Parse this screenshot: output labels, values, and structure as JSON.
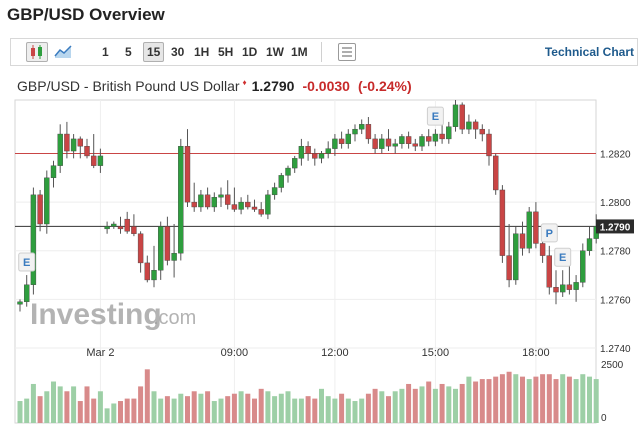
{
  "page": {
    "title": "GBP/USD Overview"
  },
  "toolbar": {
    "chart_icons": [
      "candlestick-icon",
      "area-chart-icon",
      "table-icon"
    ],
    "timeframes": [
      "1",
      "5",
      "15",
      "30",
      "1H",
      "5H",
      "1D",
      "1W",
      "1M"
    ],
    "active_timeframe": "15",
    "technical_chart_label": "Technical Chart"
  },
  "quote": {
    "name": "GBP/USD - British Pound US Dollar",
    "price": "1.2790",
    "change": "-0.0030",
    "change_pct": "(-0.24%)",
    "arrow": "♦"
  },
  "watermark": {
    "brand": "Investing",
    "suffix": ".com"
  },
  "colors": {
    "up": "#2e9e3e",
    "down": "#c94545",
    "vol_up": "#9dcfa6",
    "vol_down": "#d88a8a",
    "ref_line": "#c94545",
    "price_line": "#333333",
    "toolbar_link": "#1e5a8c"
  },
  "chart_data": {
    "type": "candlestick",
    "x_tick_labels": [
      "Mar 2",
      "09:00",
      "12:00",
      "15:00",
      "18:00"
    ],
    "y_tick_labels": [
      "1.2820",
      "1.2800",
      "1.2780",
      "1.2760",
      "1.2740"
    ],
    "ylim": [
      1.274,
      1.2842
    ],
    "current_price_label": "1.2790",
    "reference_line_value": 1.282,
    "event_markers": [
      {
        "label": "E",
        "candle_index": 1
      },
      {
        "label": "E",
        "candle_index": 62
      },
      {
        "label": "P",
        "candle_index": 79
      },
      {
        "label": "E",
        "candle_index": 81
      }
    ],
    "volume_axis_labels": [
      "2500",
      "0"
    ],
    "volume_max": 2500,
    "candles": [
      [
        1.2758,
        1.276,
        1.2755,
        1.2759
      ],
      [
        1.2759,
        1.277,
        1.2757,
        1.2766
      ],
      [
        1.2766,
        1.2806,
        1.2762,
        1.2803
      ],
      [
        1.2803,
        1.2805,
        1.2788,
        1.2791
      ],
      [
        1.2791,
        1.2813,
        1.2787,
        1.281
      ],
      [
        1.281,
        1.2817,
        1.2806,
        1.2815
      ],
      [
        1.2815,
        1.2832,
        1.2812,
        1.2828
      ],
      [
        1.2828,
        1.2833,
        1.2818,
        1.2821
      ],
      [
        1.2821,
        1.2828,
        1.2818,
        1.2826
      ],
      [
        1.2826,
        1.2827,
        1.2818,
        1.2823
      ],
      [
        1.2823,
        1.2826,
        1.2818,
        1.2819
      ],
      [
        1.2819,
        1.2828,
        1.2814,
        1.2815
      ],
      [
        1.2815,
        1.2822,
        1.2812,
        1.2819
      ],
      [
        1.2789,
        1.2792,
        1.2787,
        1.279
      ],
      [
        1.279,
        1.2792,
        1.2789,
        1.2791
      ],
      [
        1.279,
        1.2794,
        1.2787,
        1.2789
      ],
      [
        1.2793,
        1.2796,
        1.2787,
        1.2788
      ],
      [
        1.279,
        1.2795,
        1.2786,
        1.2787
      ],
      [
        1.2787,
        1.2788,
        1.2771,
        1.2775
      ],
      [
        1.2775,
        1.2778,
        1.2767,
        1.2768
      ],
      [
        1.2768,
        1.2782,
        1.2765,
        1.2772
      ],
      [
        1.2772,
        1.2792,
        1.2768,
        1.279
      ],
      [
        1.279,
        1.2794,
        1.2774,
        1.2776
      ],
      [
        1.2776,
        1.2791,
        1.2769,
        1.2779
      ],
      [
        1.2779,
        1.2826,
        1.2776,
        1.2823
      ],
      [
        1.2823,
        1.283,
        1.2798,
        1.28
      ],
      [
        1.28,
        1.2808,
        1.2796,
        1.2798
      ],
      [
        1.2798,
        1.2805,
        1.2796,
        1.2803
      ],
      [
        1.2803,
        1.2806,
        1.2797,
        1.2798
      ],
      [
        1.2798,
        1.2804,
        1.2796,
        1.2802
      ],
      [
        1.2802,
        1.2806,
        1.2798,
        1.2803
      ],
      [
        1.2803,
        1.2809,
        1.2797,
        1.2799
      ],
      [
        1.2799,
        1.2806,
        1.2796,
        1.2797
      ],
      [
        1.2797,
        1.2802,
        1.2795,
        1.28
      ],
      [
        1.28,
        1.2803,
        1.2797,
        1.2798
      ],
      [
        1.2798,
        1.2801,
        1.2796,
        1.2797
      ],
      [
        1.2797,
        1.28,
        1.2794,
        1.2795
      ],
      [
        1.2795,
        1.2805,
        1.2793,
        1.2803
      ],
      [
        1.2803,
        1.2808,
        1.2801,
        1.2806
      ],
      [
        1.2806,
        1.2812,
        1.2804,
        1.2811
      ],
      [
        1.2811,
        1.2815,
        1.2808,
        1.2814
      ],
      [
        1.2814,
        1.2819,
        1.2812,
        1.2818
      ],
      [
        1.2818,
        1.2826,
        1.2815,
        1.2823
      ],
      [
        1.2823,
        1.2825,
        1.2817,
        1.282
      ],
      [
        1.282,
        1.2822,
        1.2815,
        1.2818
      ],
      [
        1.2818,
        1.2821,
        1.2816,
        1.282
      ],
      [
        1.282,
        1.2825,
        1.2818,
        1.2822
      ],
      [
        1.2822,
        1.2828,
        1.2819,
        1.2826
      ],
      [
        1.2826,
        1.2829,
        1.2822,
        1.2824
      ],
      [
        1.2824,
        1.283,
        1.2822,
        1.2828
      ],
      [
        1.2828,
        1.2832,
        1.2825,
        1.283
      ],
      [
        1.283,
        1.2834,
        1.2828,
        1.2832
      ],
      [
        1.2832,
        1.2835,
        1.2824,
        1.2826
      ],
      [
        1.2826,
        1.2828,
        1.282,
        1.2822
      ],
      [
        1.2822,
        1.2828,
        1.282,
        1.2826
      ],
      [
        1.2826,
        1.283,
        1.2821,
        1.2823
      ],
      [
        1.2823,
        1.2826,
        1.282,
        1.2824
      ],
      [
        1.2824,
        1.2828,
        1.2822,
        1.2827
      ],
      [
        1.2827,
        1.2829,
        1.2822,
        1.2824
      ],
      [
        1.2824,
        1.2826,
        1.2821,
        1.2823
      ],
      [
        1.2823,
        1.2828,
        1.2821,
        1.2827
      ],
      [
        1.2827,
        1.283,
        1.2823,
        1.2825
      ],
      [
        1.2825,
        1.283,
        1.2823,
        1.2828
      ],
      [
        1.2828,
        1.2832,
        1.2824,
        1.2826
      ],
      [
        1.2826,
        1.2833,
        1.2824,
        1.2831
      ],
      [
        1.2831,
        1.2842,
        1.2829,
        1.284
      ],
      [
        1.284,
        1.2841,
        1.2828,
        1.283
      ],
      [
        1.283,
        1.2836,
        1.2828,
        1.2833
      ],
      [
        1.2833,
        1.2834,
        1.2826,
        1.283
      ],
      [
        1.283,
        1.2832,
        1.2825,
        1.2828
      ],
      [
        1.2828,
        1.283,
        1.2815,
        1.2819
      ],
      [
        1.2819,
        1.282,
        1.2803,
        1.2805
      ],
      [
        1.2805,
        1.2807,
        1.2775,
        1.2778
      ],
      [
        1.2778,
        1.2791,
        1.2765,
        1.2768
      ],
      [
        1.2768,
        1.279,
        1.2766,
        1.2787
      ],
      [
        1.2787,
        1.2792,
        1.2778,
        1.2781
      ],
      [
        1.2781,
        1.2798,
        1.2779,
        1.2796
      ],
      [
        1.2796,
        1.28,
        1.2781,
        1.2783
      ],
      [
        1.2783,
        1.2787,
        1.2775,
        1.2778
      ],
      [
        1.2778,
        1.2782,
        1.2762,
        1.2765
      ],
      [
        1.2765,
        1.2772,
        1.2758,
        1.2763
      ],
      [
        1.2763,
        1.2772,
        1.2761,
        1.2766
      ],
      [
        1.2766,
        1.2774,
        1.2762,
        1.2764
      ],
      [
        1.2764,
        1.277,
        1.2759,
        1.2767
      ],
      [
        1.2767,
        1.2783,
        1.2765,
        1.278
      ],
      [
        1.278,
        1.279,
        1.2778,
        1.2785
      ],
      [
        1.2785,
        1.2795,
        1.2783,
        1.279
      ]
    ],
    "volumes": [
      900,
      1000,
      1600,
      1100,
      1300,
      1700,
      1500,
      1300,
      1500,
      900,
      1500,
      1000,
      1300,
      600,
      800,
      900,
      1000,
      1000,
      1500,
      2200,
      1300,
      1000,
      1100,
      1000,
      1200,
      1100,
      1300,
      1200,
      1300,
      900,
      1000,
      1100,
      1200,
      1300,
      1200,
      1000,
      1400,
      1300,
      1100,
      1200,
      1300,
      1000,
      1000,
      1100,
      1000,
      1400,
      1100,
      1000,
      1200,
      1000,
      900,
      1000,
      1200,
      1400,
      1300,
      1100,
      1300,
      1400,
      1600,
      1400,
      1500,
      1700,
      1400,
      1600,
      1500,
      1400,
      1600,
      1900,
      1700,
      1800,
      1800,
      1900,
      2000,
      2100,
      2000,
      1900,
      1800,
      1900,
      2000,
      2000,
      1800,
      2000,
      1900,
      1800,
      2000,
      1900,
      1800
    ]
  }
}
